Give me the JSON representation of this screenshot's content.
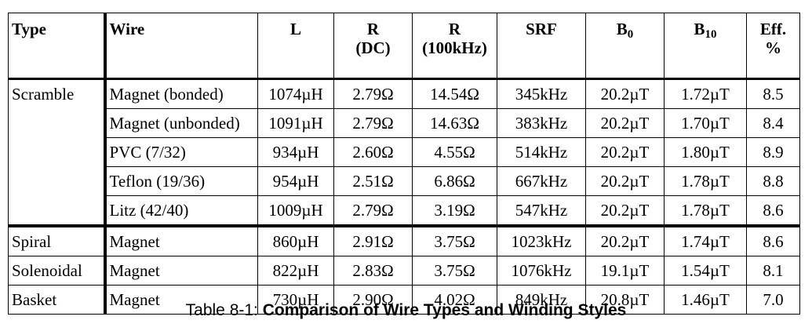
{
  "table": {
    "headers": {
      "type": "Type",
      "wire": "Wire",
      "L": "L",
      "Rdc_line1": "R",
      "Rdc_line2": "(DC)",
      "Rac_line1": "R",
      "Rac_line2": "(100kHz)",
      "SRF": "SRF",
      "B0_main": "B",
      "B0_sub": "0",
      "B10_main": "B",
      "B10_sub": "10",
      "eff_line1": "Eff.",
      "eff_line2": "%"
    },
    "rows": [
      {
        "type": "Scramble",
        "wire": "Magnet (bonded)",
        "L": "1074µH",
        "Rdc": "2.79Ω",
        "Rac": "14.54Ω",
        "SRF": "345kHz",
        "B0": "20.2µT",
        "B10": "1.72µT",
        "eff": "8.5"
      },
      {
        "type": "",
        "wire": "Magnet (unbonded)",
        "L": "1091µH",
        "Rdc": "2.79Ω",
        "Rac": "14.63Ω",
        "SRF": "383kHz",
        "B0": "20.2µT",
        "B10": "1.70µT",
        "eff": "8.4"
      },
      {
        "type": "",
        "wire": "PVC (7/32)",
        "L": "934µH",
        "Rdc": "2.60Ω",
        "Rac": "4.55Ω",
        "SRF": "514kHz",
        "B0": "20.2µT",
        "B10": "1.80µT",
        "eff": "8.9"
      },
      {
        "type": "",
        "wire": "Teflon (19/36)",
        "L": "954µH",
        "Rdc": "2.51Ω",
        "Rac": "6.86Ω",
        "SRF": "667kHz",
        "B0": "20.2µT",
        "B10": "1.78µT",
        "eff": "8.8"
      },
      {
        "type": "",
        "wire": "Litz (42/40)",
        "L": "1009µH",
        "Rdc": "2.79Ω",
        "Rac": "3.19Ω",
        "SRF": "547kHz",
        "B0": "20.2µT",
        "B10": "1.78µT",
        "eff": "8.6"
      },
      {
        "type": "Spiral",
        "wire": "Magnet",
        "L": "860µH",
        "Rdc": "2.91Ω",
        "Rac": "3.75Ω",
        "SRF": "1023kHz",
        "B0": "20.2µT",
        "B10": "1.74µT",
        "eff": "8.6"
      },
      {
        "type": "Solenoidal",
        "wire": "Magnet",
        "L": "822µH",
        "Rdc": "2.83Ω",
        "Rac": "3.75Ω",
        "SRF": "1076kHz",
        "B0": "19.1µT",
        "B10": "1.54µT",
        "eff": "8.1"
      },
      {
        "type": "Basket",
        "wire": "Magnet",
        "L": "730µH",
        "Rdc": "2.90Ω",
        "Rac": "4.02Ω",
        "SRF": "849kHz",
        "B0": "20.8µT",
        "B10": "1.46µT",
        "eff": "7.0"
      }
    ]
  },
  "caption": {
    "prefix": "Table 8-1: ",
    "title": "Comparison of Wire Types and Winding Styles"
  }
}
